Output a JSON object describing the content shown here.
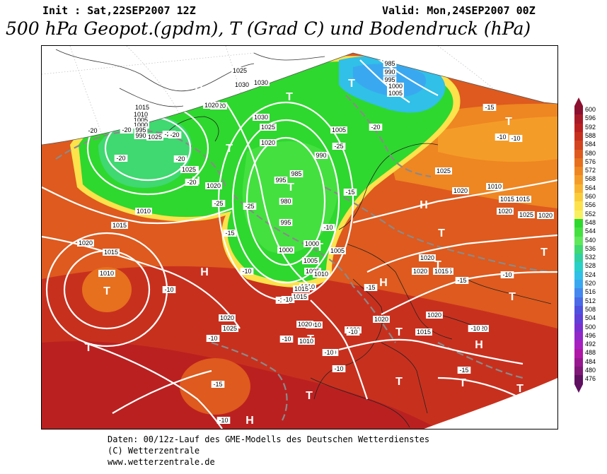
{
  "header": {
    "init": "Init : Sat,22SEP2007 12Z",
    "valid": "Valid: Mon,24SEP2007 00Z",
    "title": "500 hPa Geopot.(gpdm), T (Grad C) und Bodendruck (hPa)"
  },
  "footer": {
    "line1": "Daten: 00/12z-Lauf des GME-Modells des Deutschen Wetterdienstes",
    "line2": "(C) Wetterzentrale",
    "line3": "www.wetterzentrale.de"
  },
  "legend": {
    "values": [
      "600",
      "596",
      "592",
      "588",
      "584",
      "580",
      "576",
      "572",
      "568",
      "564",
      "560",
      "556",
      "552",
      "548",
      "544",
      "540",
      "536",
      "532",
      "528",
      "524",
      "520",
      "516",
      "512",
      "508",
      "504",
      "500",
      "496",
      "492",
      "488",
      "484",
      "480",
      "476"
    ],
    "colors": [
      "#8c1030",
      "#a81a28",
      "#bb2020",
      "#c8301e",
      "#d4441e",
      "#de5a1e",
      "#e6701e",
      "#ee8622",
      "#f49c28",
      "#f8b430",
      "#fbcc3a",
      "#fde24c",
      "#f8f060",
      "#2ed82e",
      "#44e040",
      "#5ee85a",
      "#40d870",
      "#30d0a0",
      "#28d0c8",
      "#30c0e8",
      "#3aa8f0",
      "#4488f0",
      "#4a6ae8",
      "#5050e0",
      "#6040d8",
      "#7a30d0",
      "#9228c8",
      "#a820c0",
      "#b018a8",
      "#981890",
      "#801878",
      "#601060"
    ]
  },
  "map": {
    "highs": [
      "H",
      "H",
      "H",
      "H",
      "H",
      "H",
      "H"
    ],
    "lows": [
      "T",
      "T",
      "T",
      "T",
      "T",
      "T",
      "T",
      "T",
      "T",
      "T",
      "T",
      "T",
      "T",
      "T",
      "T",
      "T",
      "T",
      "T",
      "T"
    ],
    "isobar_labels": [
      "1025",
      "1030",
      "1030",
      "985",
      "990",
      "995",
      "1000",
      "1005",
      "1015",
      "1010",
      "1005",
      "1000",
      "995",
      "990",
      "1020",
      "1030",
      "1025",
      "1020",
      "1020",
      "1005",
      "990",
      "985",
      "995",
      "980",
      "995",
      "1000",
      "1005",
      "1005",
      "1010",
      "1015",
      "1025",
      "1025",
      "1020",
      "1020",
      "1010",
      "1015",
      "1020",
      "1015",
      "1010",
      "1020",
      "1025",
      "1020",
      "1025",
      "1015",
      "1020",
      "1020",
      "1015",
      "1015",
      "1020",
      "1020",
      "1020",
      "1020",
      "1015",
      "1020",
      "1020",
      "1010",
      "1010",
      "1025",
      "1005",
      "1010",
      "1015",
      "1010",
      "1015",
      "1025",
      "1025",
      "1000",
      "1005",
      "1020"
    ],
    "temp_labels": [
      "-20",
      "-20",
      "-20",
      "-20",
      "-20",
      "-20",
      "-20",
      "-25",
      "-25",
      "-25",
      "-20",
      "-15",
      "-15",
      "-10",
      "-10",
      "-10",
      "-10",
      "-15",
      "-10",
      "-10",
      "-10",
      "-10",
      "-10",
      "-15",
      "-10",
      "-10",
      "-10",
      "-15",
      "-10",
      "-15",
      "-10",
      "-15",
      "-15",
      "-10",
      "-10"
    ]
  }
}
